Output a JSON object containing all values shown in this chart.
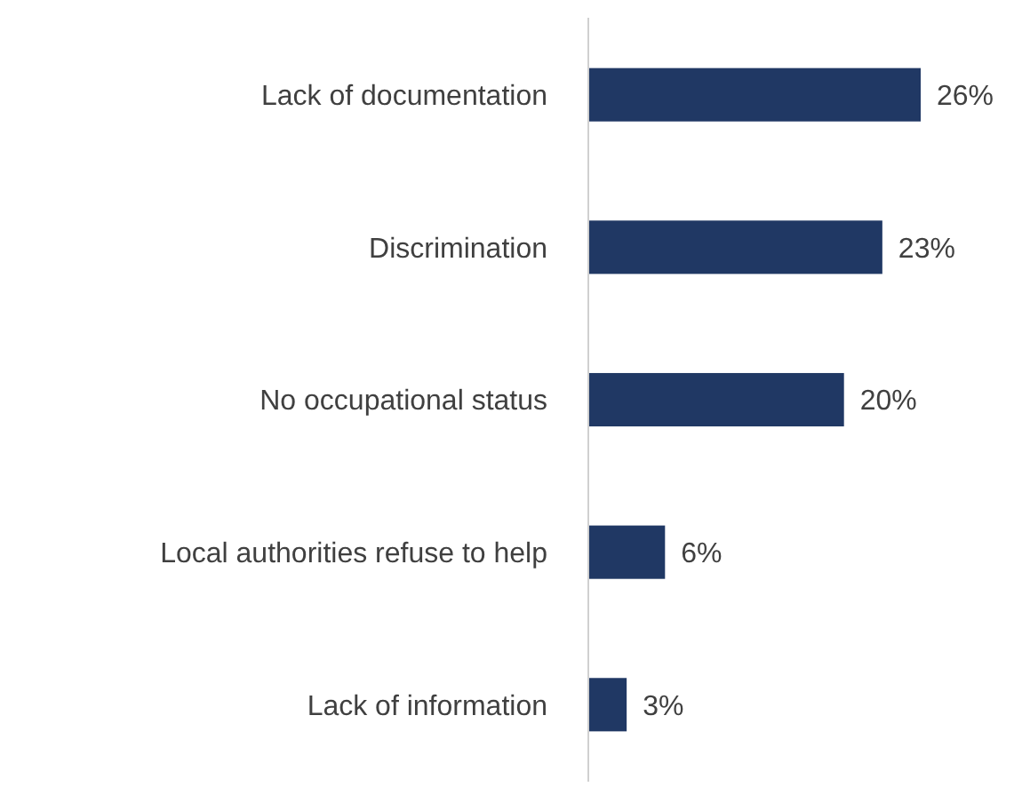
{
  "chart_data": {
    "type": "bar",
    "orientation": "horizontal",
    "categories": [
      "Lack of documentation",
      "Discrimination",
      "No occupational status",
      "Local authorities refuse to help",
      "Lack of information"
    ],
    "values": [
      26,
      23,
      20,
      6,
      3
    ],
    "value_labels": [
      "26%",
      "23%",
      "20%",
      "6%",
      "3%"
    ],
    "color": "#203864"
  }
}
